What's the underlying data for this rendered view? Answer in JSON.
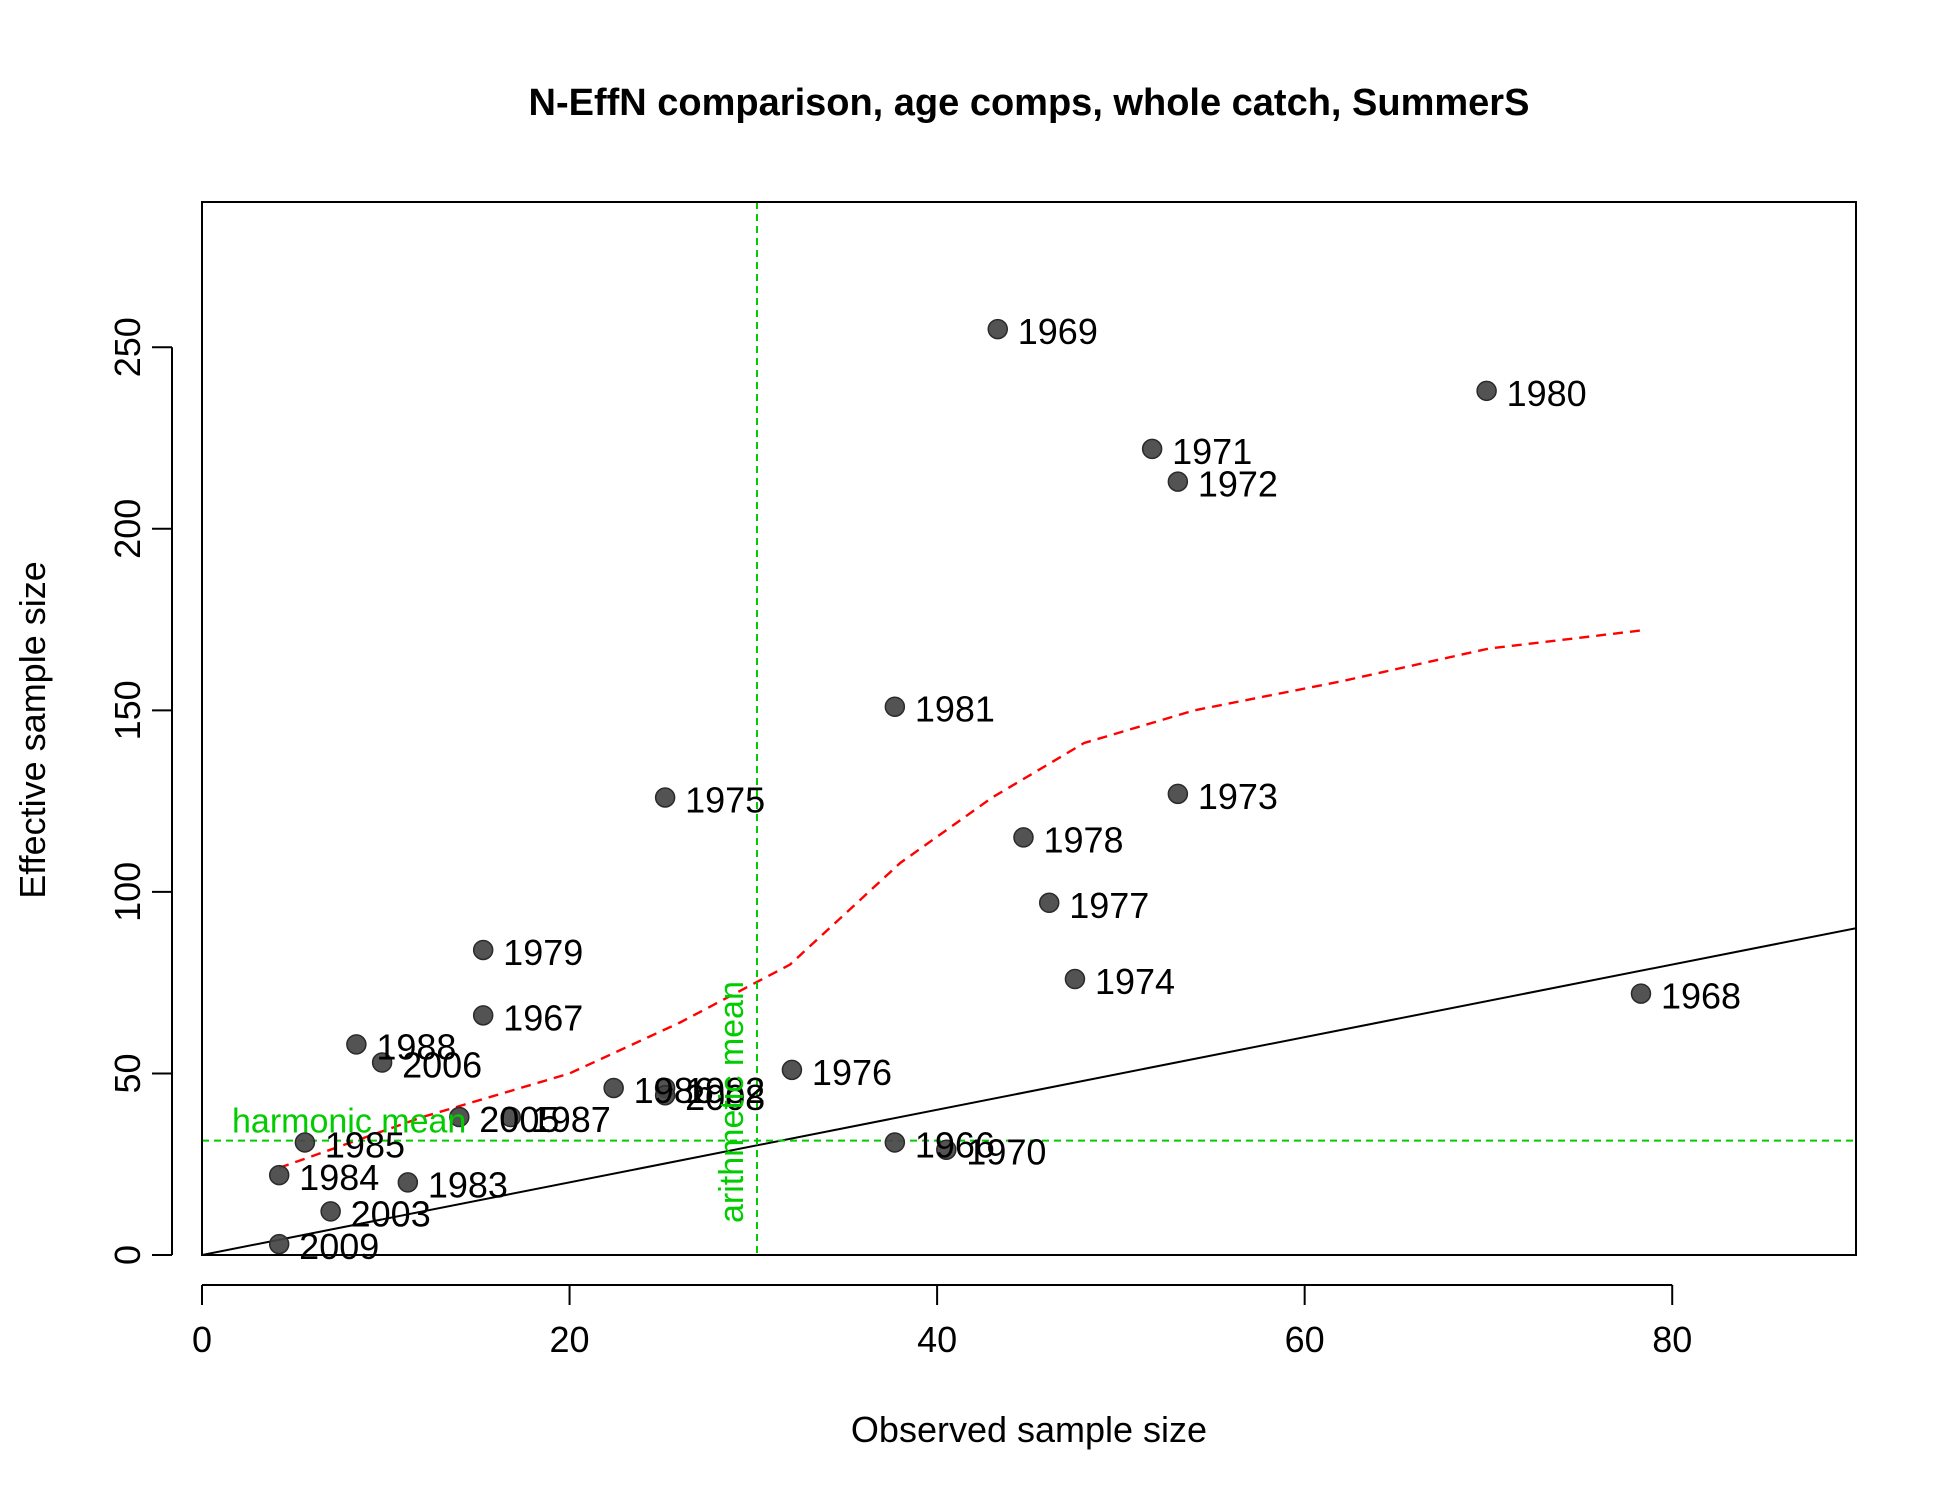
{
  "chart_data": {
    "type": "scatter",
    "title": "N-EffN comparison, age comps, whole catch, SummerS",
    "xlabel": "Observed sample size",
    "ylabel": "Effective sample size",
    "xlim": [
      0,
      90
    ],
    "ylim": [
      0,
      290
    ],
    "xticks": [
      "0",
      "20",
      "40",
      "60",
      "80"
    ],
    "yticks": [
      "0",
      "50",
      "100",
      "150",
      "200",
      "250"
    ],
    "grid": false,
    "points": [
      {
        "label": "1966",
        "x": 37.7,
        "y": 31
      },
      {
        "label": "1967",
        "x": 15.3,
        "y": 66
      },
      {
        "label": "1968",
        "x": 78.3,
        "y": 72
      },
      {
        "label": "1969",
        "x": 43.3,
        "y": 255
      },
      {
        "label": "1970",
        "x": 40.5,
        "y": 29
      },
      {
        "label": "1971",
        "x": 51.7,
        "y": 222
      },
      {
        "label": "1972",
        "x": 53.1,
        "y": 213
      },
      {
        "label": "1973",
        "x": 53.1,
        "y": 127
      },
      {
        "label": "1974",
        "x": 47.5,
        "y": 76
      },
      {
        "label": "1975",
        "x": 25.2,
        "y": 126
      },
      {
        "label": "1976",
        "x": 32.1,
        "y": 51
      },
      {
        "label": "1977",
        "x": 46.1,
        "y": 97
      },
      {
        "label": "1978",
        "x": 44.7,
        "y": 115
      },
      {
        "label": "1979",
        "x": 15.3,
        "y": 84
      },
      {
        "label": "1980",
        "x": 69.9,
        "y": 238
      },
      {
        "label": "1981",
        "x": 37.7,
        "y": 151
      },
      {
        "label": "1982",
        "x": 25.2,
        "y": 46
      },
      {
        "label": "1983",
        "x": 11.2,
        "y": 20
      },
      {
        "label": "1984",
        "x": 4.2,
        "y": 22
      },
      {
        "label": "1985",
        "x": 5.6,
        "y": 31
      },
      {
        "label": "1986",
        "x": 22.4,
        "y": 46
      },
      {
        "label": "1987",
        "x": 16.8,
        "y": 38
      },
      {
        "label": "1988",
        "x": 8.4,
        "y": 58
      },
      {
        "label": "2003",
        "x": 7.0,
        "y": 12
      },
      {
        "label": "2005",
        "x": 14.0,
        "y": 38
      },
      {
        "label": "2006",
        "x": 9.8,
        "y": 53
      },
      {
        "label": "2008",
        "x": 25.2,
        "y": 44
      },
      {
        "label": "2009",
        "x": 4.2,
        "y": 3
      }
    ],
    "one_to_one_line": {
      "x": [
        0,
        90
      ],
      "y": [
        0,
        90
      ]
    },
    "loess_line": {
      "x": [
        4.2,
        12,
        20,
        26,
        32,
        38,
        43,
        48,
        54,
        62,
        70,
        78.3
      ],
      "y": [
        24,
        38,
        50,
        64,
        80,
        108,
        126,
        141,
        150,
        158,
        167,
        172
      ]
    },
    "harmonic_mean": {
      "value": 31.5,
      "label": "harmonic mean"
    },
    "arithmetic_mean": {
      "value": 30.2,
      "label": "arithmetic mean"
    },
    "colors": {
      "points": "#444444",
      "loess": "#ff0000",
      "means": "#00cc00",
      "one_to_one": "#000000"
    }
  }
}
